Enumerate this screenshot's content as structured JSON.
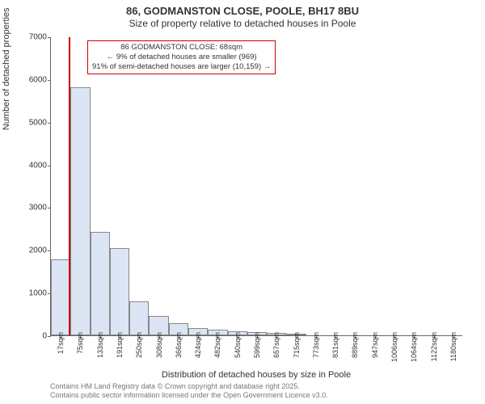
{
  "title_line1": "86, GODMANSTON CLOSE, POOLE, BH17 8BU",
  "title_line2": "Size of property relative to detached houses in Poole",
  "ylabel": "Number of detached properties",
  "xlabel": "Distribution of detached houses by size in Poole",
  "attribution_line1": "Contains HM Land Registry data © Crown copyright and database right 2025.",
  "attribution_line2": "Contains public sector information licensed under the Open Government Licence v3.0.",
  "annotation_line1": "86 GODMANSTON CLOSE: 68sqm",
  "annotation_line2": "← 9% of detached houses are smaller (969)",
  "annotation_line3": "91% of semi-detached houses are larger (10,159) →",
  "chart": {
    "type": "histogram",
    "ylim": [
      0,
      7000
    ],
    "ytick_step": 1000,
    "xlim_start": 17,
    "xlim_end": 1180,
    "xtick_step": 58,
    "xtick_unit": "sqm",
    "bar_color": "#dbe5f4",
    "bar_border_color": "#888888",
    "background_color": "#ffffff",
    "axis_color": "#666666",
    "marker_x": 68,
    "marker_color": "#cc0000",
    "annotation_box_border": "#cc0000",
    "title_fontsize": 13,
    "subtitle_fontsize": 12,
    "label_fontsize": 11,
    "tick_fontsize": 10,
    "xtick_fontsize": 9,
    "values": [
      1780,
      5800,
      2430,
      2050,
      800,
      450,
      280,
      180,
      130,
      100,
      70,
      60,
      20,
      0,
      0,
      0,
      0,
      0,
      0,
      0,
      0
    ],
    "x_tick_labels": [
      "17sqm",
      "75sqm",
      "133sqm",
      "191sqm",
      "250sqm",
      "308sqm",
      "366sqm",
      "424sqm",
      "482sqm",
      "540sqm",
      "599sqm",
      "657sqm",
      "715sqm",
      "773sqm",
      "831sqm",
      "889sqm",
      "947sqm",
      "1006sqm",
      "1064sqm",
      "1122sqm",
      "1180sqm"
    ],
    "y_tick_labels": [
      "0",
      "1000",
      "2000",
      "3000",
      "4000",
      "5000",
      "6000",
      "7000"
    ]
  }
}
